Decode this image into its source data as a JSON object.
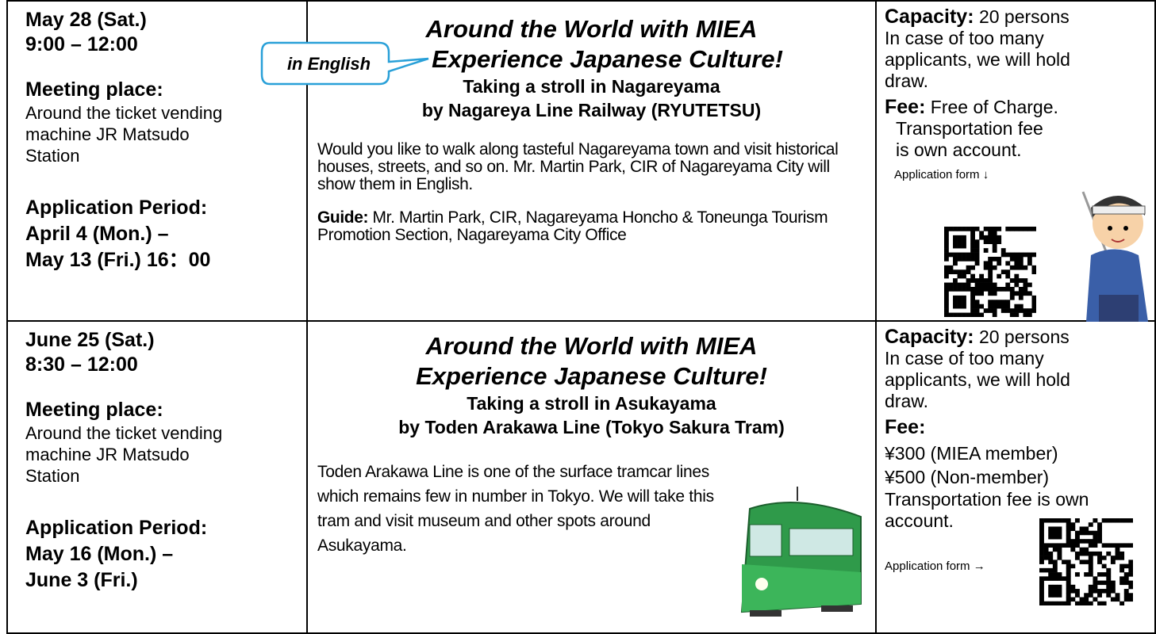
{
  "rows": [
    {
      "date": "May 28 (Sat.)",
      "time": "9:00 – 12:00",
      "meeting_label": "Meeting place:",
      "meeting_place": "Around the ticket vending machine JR Matsudo Station",
      "period_label": "Application Period:",
      "period_start": "April 4 (Mon.) –",
      "period_end": "May 13 (Fri.) 16：00",
      "badge": "in English",
      "title_line1": "Around the World with MIEA",
      "title_line2": "Experience Japanese Culture!",
      "subtitle_line1": "Taking a stroll in Nagareyama",
      "subtitle_line2": "by Nagareya Line Railway (RYUTETSU)",
      "description": "Would you like to walk along tasteful Nagareyama town and visit historical houses, streets, and so on. Mr. Martin Park, CIR of Nagareyama City will show them in English.",
      "guide_label": "Guide:",
      "guide": "Mr. Martin Park, CIR, Nagareyama Honcho & Toneunga Tourism Promotion Section, Nagareyama City Office",
      "capacity_label": "Capacity:",
      "capacity": "20 persons",
      "capacity_note": "In case of too many applicants, we will hold draw.",
      "fee_label": "Fee:",
      "fee": "Free of Charge.",
      "fee_note": "Transportation fee is own account.",
      "form_label": "Application form ↓"
    },
    {
      "date": "June 25 (Sat.)",
      "time": "8:30 – 12:00",
      "meeting_label": "Meeting place:",
      "meeting_place": "Around the ticket vending machine JR Matsudo Station",
      "period_label": "Application Period:",
      "period_start": "May 16 (Mon.) –",
      "period_end": "June 3 (Fri.)",
      "title_line1": "Around the World with MIEA",
      "title_line2": "Experience Japanese Culture!",
      "subtitle_line1": "Taking a stroll in Asukayama",
      "subtitle_line2": "by Toden Arakawa Line (Tokyo Sakura Tram)",
      "description": "Toden Arakawa Line is one of the surface tramcar lines which remains few in number in Tokyo. We will take this tram and visit museum and other spots around Asukayama.",
      "capacity_label": "Capacity:",
      "capacity": "20 persons",
      "capacity_note": "In case of too many applicants, we will hold draw.",
      "fee_label": "Fee:",
      "fee_member": "¥300 (MIEA member)",
      "fee_nonmember": "¥500 (Non-member)",
      "fee_note": "Transportation fee is own account.",
      "form_label": "Application form →"
    }
  ]
}
